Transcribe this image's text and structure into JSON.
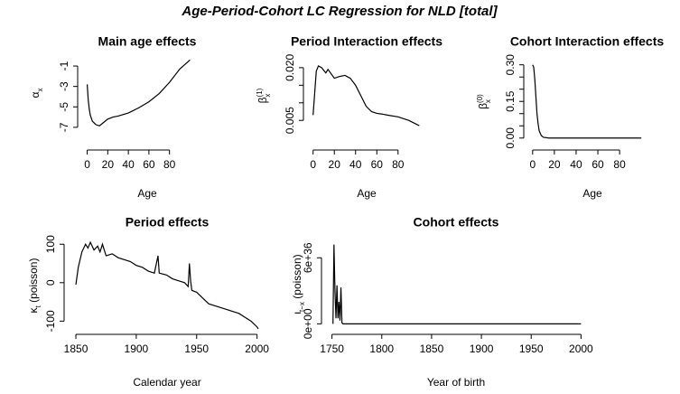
{
  "title": "Age-Period-Cohort LC Regression for NLD [total]",
  "chart_data": [
    {
      "type": "line",
      "title": "Main age effects",
      "xlabel": "Age",
      "ylabel": "α",
      "ylabel_sub": "x",
      "color": "#000000",
      "x": [
        0,
        1,
        2,
        3,
        5,
        8,
        10,
        12,
        15,
        20,
        25,
        30,
        40,
        50,
        60,
        70,
        80,
        90,
        100
      ],
      "values": [
        -2.8,
        -4.3,
        -5.2,
        -5.8,
        -6.4,
        -6.7,
        -6.8,
        -6.85,
        -6.6,
        -6.2,
        -6.0,
        -5.9,
        -5.6,
        -5.1,
        -4.5,
        -3.7,
        -2.6,
        -1.3,
        -0.4
      ],
      "xlim": [
        -4,
        104
      ],
      "ylim": [
        -7.1,
        -0.2
      ],
      "xticks": [
        0,
        20,
        40,
        60,
        80
      ],
      "yticks": [
        -7,
        -5,
        -3,
        -1
      ]
    },
    {
      "type": "line",
      "title": "Period Interaction effects",
      "xlabel": "Age",
      "ylabel": "β",
      "ylabel_sub": "x",
      "ylabel_sup": "(1)",
      "color": "#000000",
      "x": [
        0,
        3,
        5,
        8,
        12,
        14,
        20,
        25,
        30,
        35,
        40,
        45,
        50,
        55,
        60,
        65,
        70,
        80,
        90,
        100
      ],
      "values": [
        0.0065,
        0.019,
        0.0205,
        0.02,
        0.0185,
        0.0195,
        0.017,
        0.0175,
        0.0178,
        0.017,
        0.015,
        0.012,
        0.009,
        0.0075,
        0.007,
        0.0068,
        0.0065,
        0.006,
        0.005,
        0.0035
      ],
      "xlim": [
        -4,
        104
      ],
      "ylim": [
        0.003,
        0.021
      ],
      "xticks": [
        0,
        20,
        40,
        60,
        80
      ],
      "yticks": [
        {
          "value": 0.005,
          "label": "0.005"
        },
        {
          "value": 0.01,
          "label": null
        },
        {
          "value": 0.015,
          "label": null
        },
        {
          "value": 0.02,
          "label": "0.020"
        }
      ]
    },
    {
      "type": "line",
      "title": "Cohort Interaction effects",
      "xlabel": "Age",
      "ylabel": "β",
      "ylabel_sub": "x",
      "ylabel_sup": "(0)",
      "color": "#000000",
      "x": [
        0,
        1,
        2,
        3,
        4,
        5,
        6,
        8,
        10,
        15,
        100
      ],
      "values": [
        0.3,
        0.29,
        0.24,
        0.17,
        0.1,
        0.06,
        0.03,
        0.01,
        0.003,
        0,
        0
      ],
      "xlim": [
        -4,
        104
      ],
      "ylim": [
        -0.012,
        0.31
      ],
      "xticks": [
        0,
        20,
        40,
        60,
        80
      ],
      "yticks": [
        {
          "value": 0,
          "label": "0.00"
        },
        {
          "value": 0.05,
          "label": null
        },
        {
          "value": 0.1,
          "label": null
        },
        {
          "value": 0.15,
          "label": "0.15"
        },
        {
          "value": 0.2,
          "label": null
        },
        {
          "value": 0.25,
          "label": null
        },
        {
          "value": 0.3,
          "label": "0.30"
        }
      ]
    },
    {
      "type": "line",
      "title": "Period effects",
      "xlabel": "Calendar year",
      "ylabel": "κ",
      "ylabel_sub": "t",
      "ylabel_rest": " (poisson)",
      "color": "#000000",
      "x": [
        1850,
        1852,
        1855,
        1858,
        1860,
        1862,
        1865,
        1868,
        1870,
        1872,
        1875,
        1880,
        1885,
        1890,
        1895,
        1900,
        1905,
        1910,
        1915,
        1918,
        1919,
        1925,
        1930,
        1935,
        1940,
        1943,
        1944,
        1945,
        1946,
        1950,
        1955,
        1960,
        1965,
        1970,
        1975,
        1980,
        1985,
        1990,
        1995,
        2000,
        2001
      ],
      "values": [
        -5,
        40,
        80,
        100,
        90,
        105,
        85,
        95,
        80,
        100,
        70,
        75,
        65,
        60,
        55,
        45,
        40,
        30,
        25,
        70,
        25,
        20,
        10,
        5,
        0,
        -10,
        50,
        5,
        -20,
        -25,
        -40,
        -55,
        -60,
        -65,
        -70,
        -75,
        -80,
        -90,
        -100,
        -115,
        -120
      ],
      "xlim": [
        1844,
        2007
      ],
      "ylim": [
        -125,
        110
      ],
      "xticks": [
        1850,
        1900,
        1950,
        2000
      ],
      "yticks": [
        -100,
        0,
        100
      ]
    },
    {
      "type": "line",
      "title": "Cohort effects",
      "xlabel": "Year of birth",
      "ylabel": "ι",
      "ylabel_sub": "t−x",
      "ylabel_rest": " (poisson)",
      "color": "#000000",
      "x": [
        1751,
        1752,
        1753,
        1754,
        1755,
        1756,
        1757,
        1758,
        1759,
        1760,
        1761,
        1762,
        2000
      ],
      "values": [
        0,
        7.2e+36,
        3e+36,
        5e+35,
        3.5e+36,
        5e+35,
        2e+36,
        3e+35,
        3.3e+36,
        1e+35,
        0,
        0,
        0
      ],
      "xlim": [
        1744,
        2006
      ],
      "ylim": [
        -3e+35,
        7.5e+36
      ],
      "xticks": [
        1750,
        1800,
        1850,
        1900,
        1950,
        2000
      ],
      "yticks": [
        {
          "value": 0,
          "label": "0e+00"
        },
        {
          "value": 6e+36,
          "label": "6e+36"
        }
      ]
    }
  ]
}
